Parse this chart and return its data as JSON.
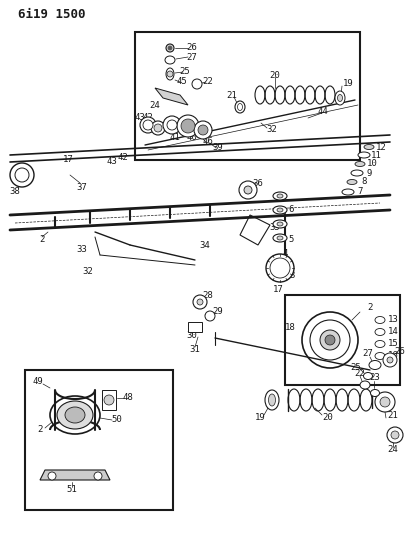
{
  "title": "6i19 1500",
  "bg_color": "#ffffff",
  "line_color": "#1a1a1a",
  "title_fontsize": 9,
  "label_fontsize": 6.5,
  "fig_w": 4.08,
  "fig_h": 5.33,
  "dpi": 100
}
